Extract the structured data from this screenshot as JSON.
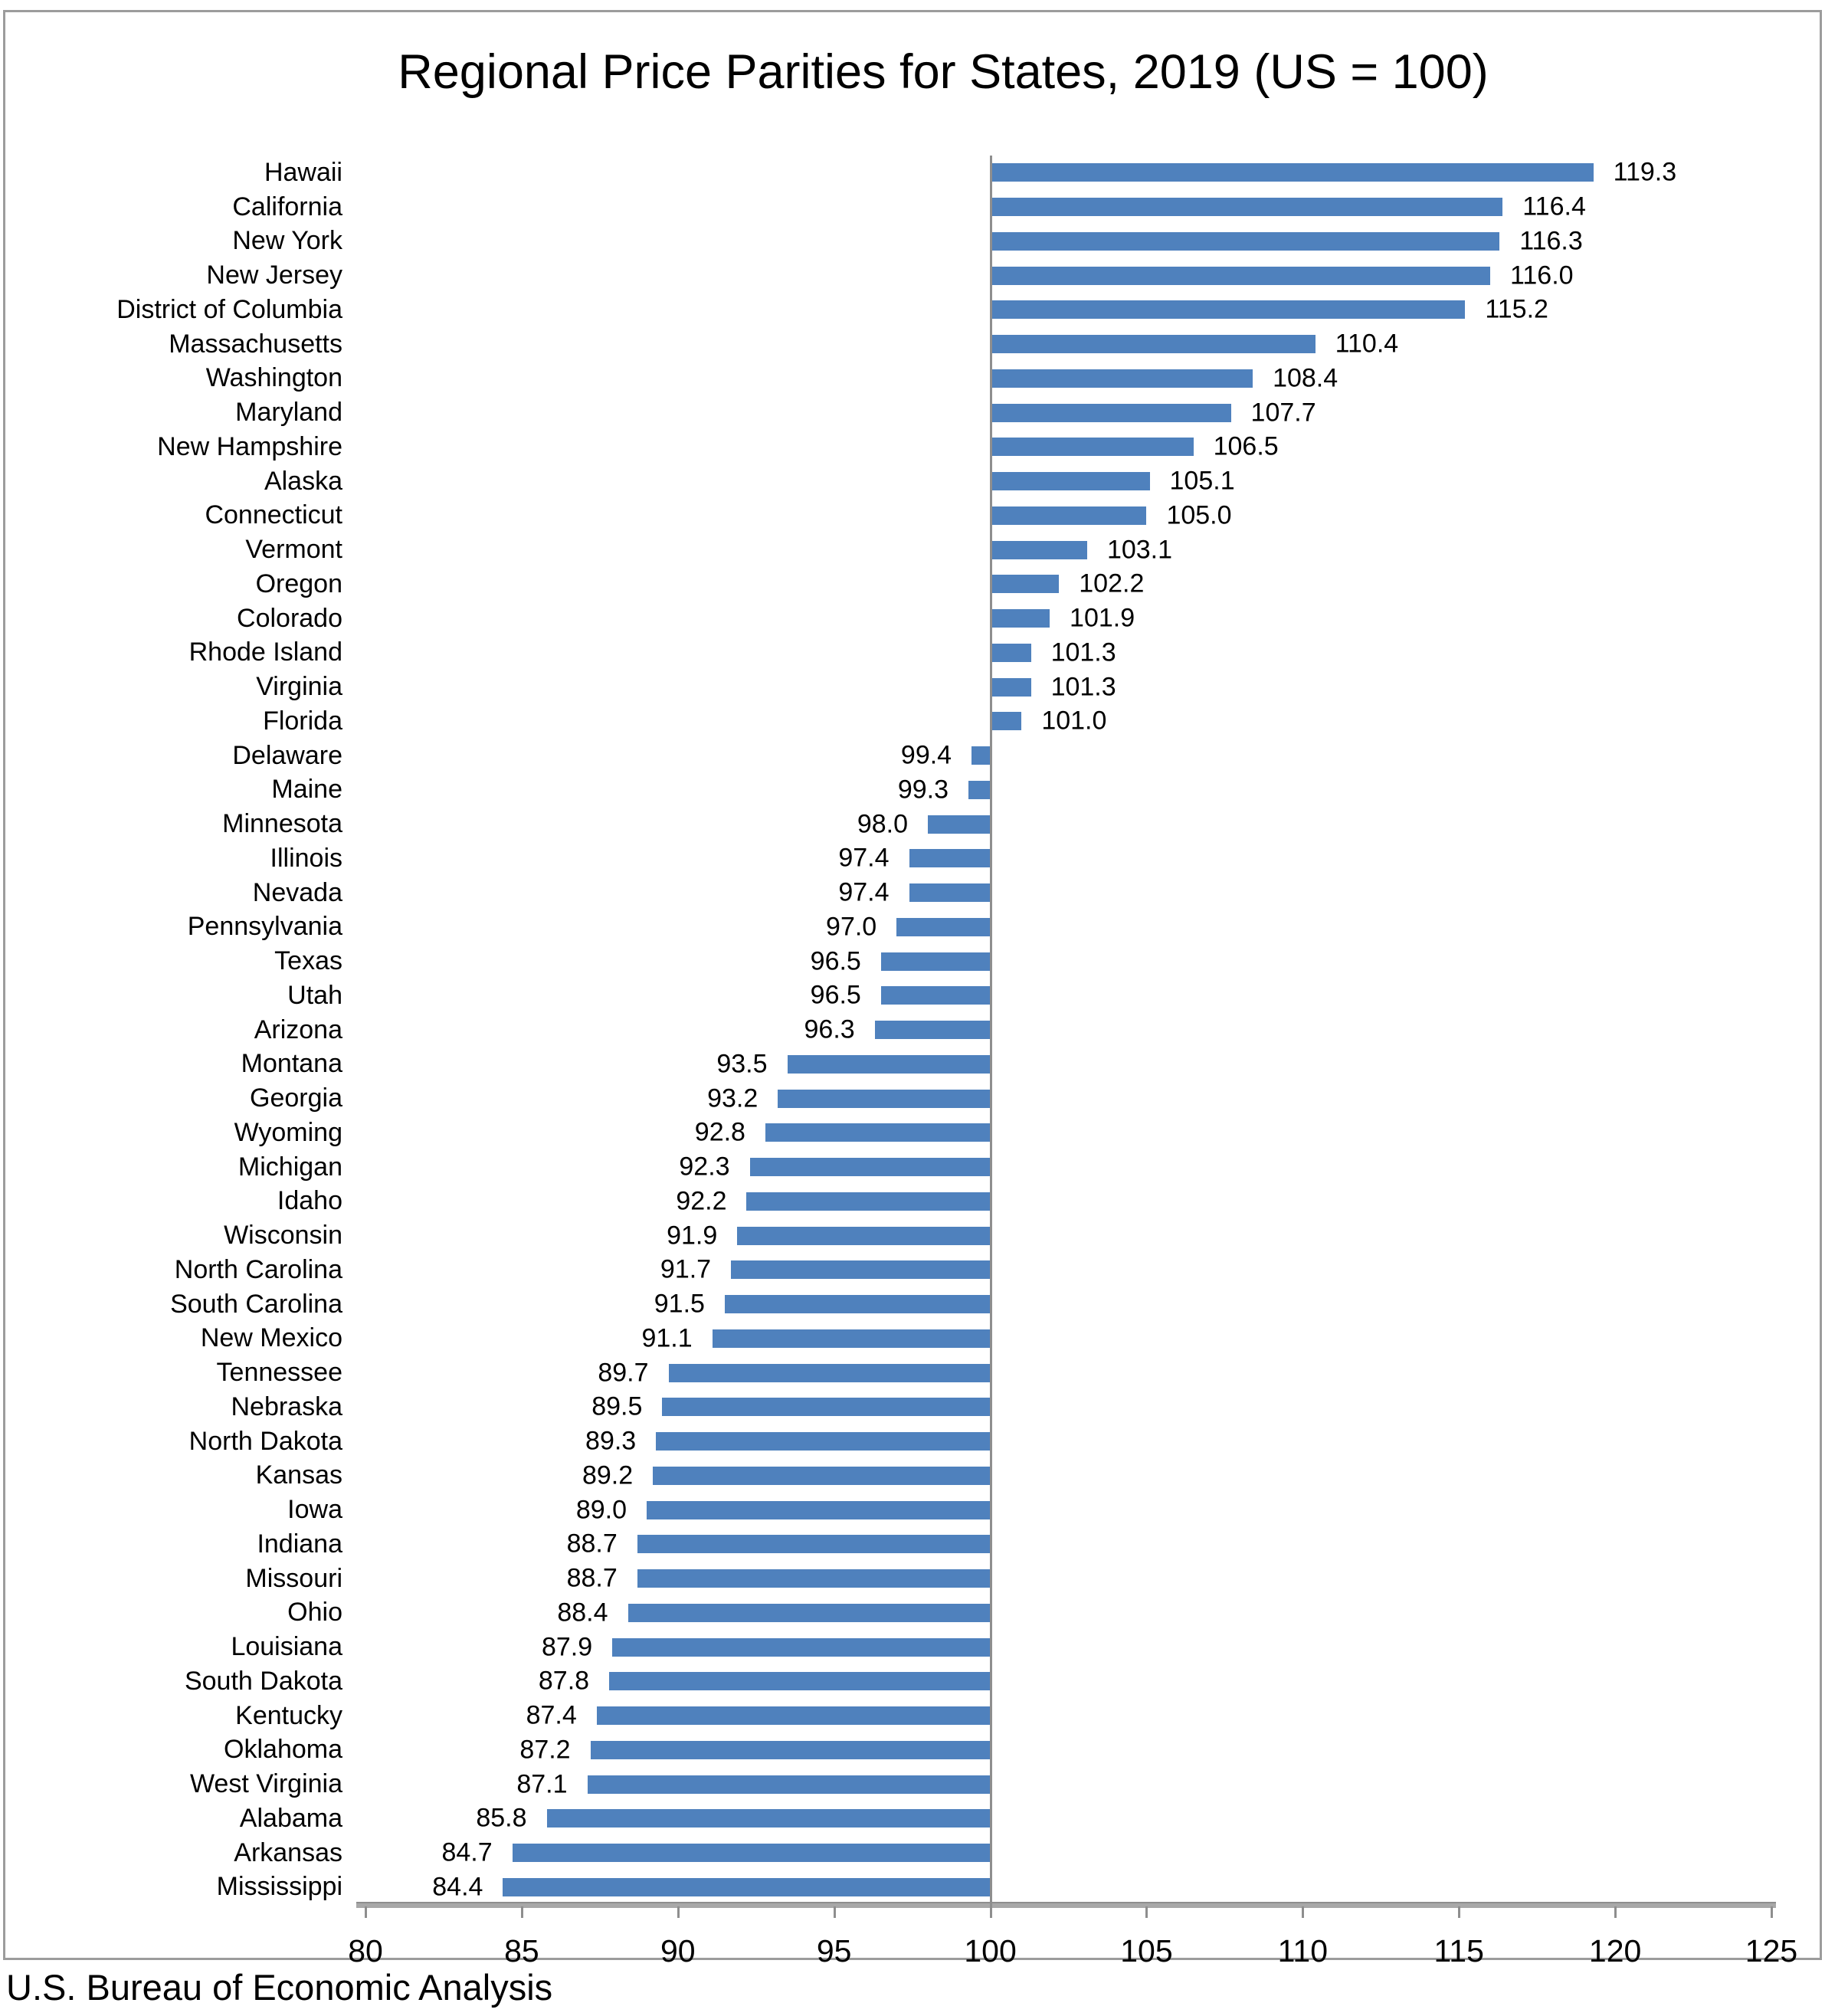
{
  "chart_data": {
    "type": "bar",
    "orientation": "horizontal",
    "title": "Regional Price Parities for States, 2019 (US = 100)",
    "baseline": 100,
    "xlim": [
      80,
      125
    ],
    "x_ticks": [
      80,
      85,
      90,
      95,
      100,
      105,
      110,
      115,
      120,
      125
    ],
    "grid": "off",
    "legend": "none",
    "bar_color": "#4F81BD",
    "axis_color": "#8e8e8e",
    "value_label_decimals": 1,
    "categories": [
      "Hawaii",
      "California",
      "New York",
      "New Jersey",
      "District of Columbia",
      "Massachusetts",
      "Washington",
      "Maryland",
      "New Hampshire",
      "Alaska",
      "Connecticut",
      "Vermont",
      "Oregon",
      "Colorado",
      "Rhode Island",
      "Virginia",
      "Florida",
      "Delaware",
      "Maine",
      "Minnesota",
      "Illinois",
      "Nevada",
      "Pennsylvania",
      "Texas",
      "Utah",
      "Arizona",
      "Montana",
      "Georgia",
      "Wyoming",
      "Michigan",
      "Idaho",
      "Wisconsin",
      "North Carolina",
      "South Carolina",
      "New Mexico",
      "Tennessee",
      "Nebraska",
      "North Dakota",
      "Kansas",
      "Iowa",
      "Indiana",
      "Missouri",
      "Ohio",
      "Louisiana",
      "South Dakota",
      "Kentucky",
      "Oklahoma",
      "West Virginia",
      "Alabama",
      "Arkansas",
      "Mississippi"
    ],
    "values": [
      119.3,
      116.4,
      116.3,
      116.0,
      115.2,
      110.4,
      108.4,
      107.7,
      106.5,
      105.1,
      105.0,
      103.1,
      102.2,
      101.9,
      101.3,
      101.3,
      101.0,
      99.4,
      99.3,
      98.0,
      97.4,
      97.4,
      97.0,
      96.5,
      96.5,
      96.3,
      93.5,
      93.2,
      92.8,
      92.3,
      92.2,
      91.9,
      91.7,
      91.5,
      91.1,
      89.7,
      89.5,
      89.3,
      89.2,
      89.0,
      88.7,
      88.7,
      88.4,
      87.9,
      87.8,
      87.4,
      87.2,
      87.1,
      85.8,
      84.7,
      84.4
    ]
  },
  "footer": {
    "source": "U.S. Bureau of Economic Analysis"
  }
}
